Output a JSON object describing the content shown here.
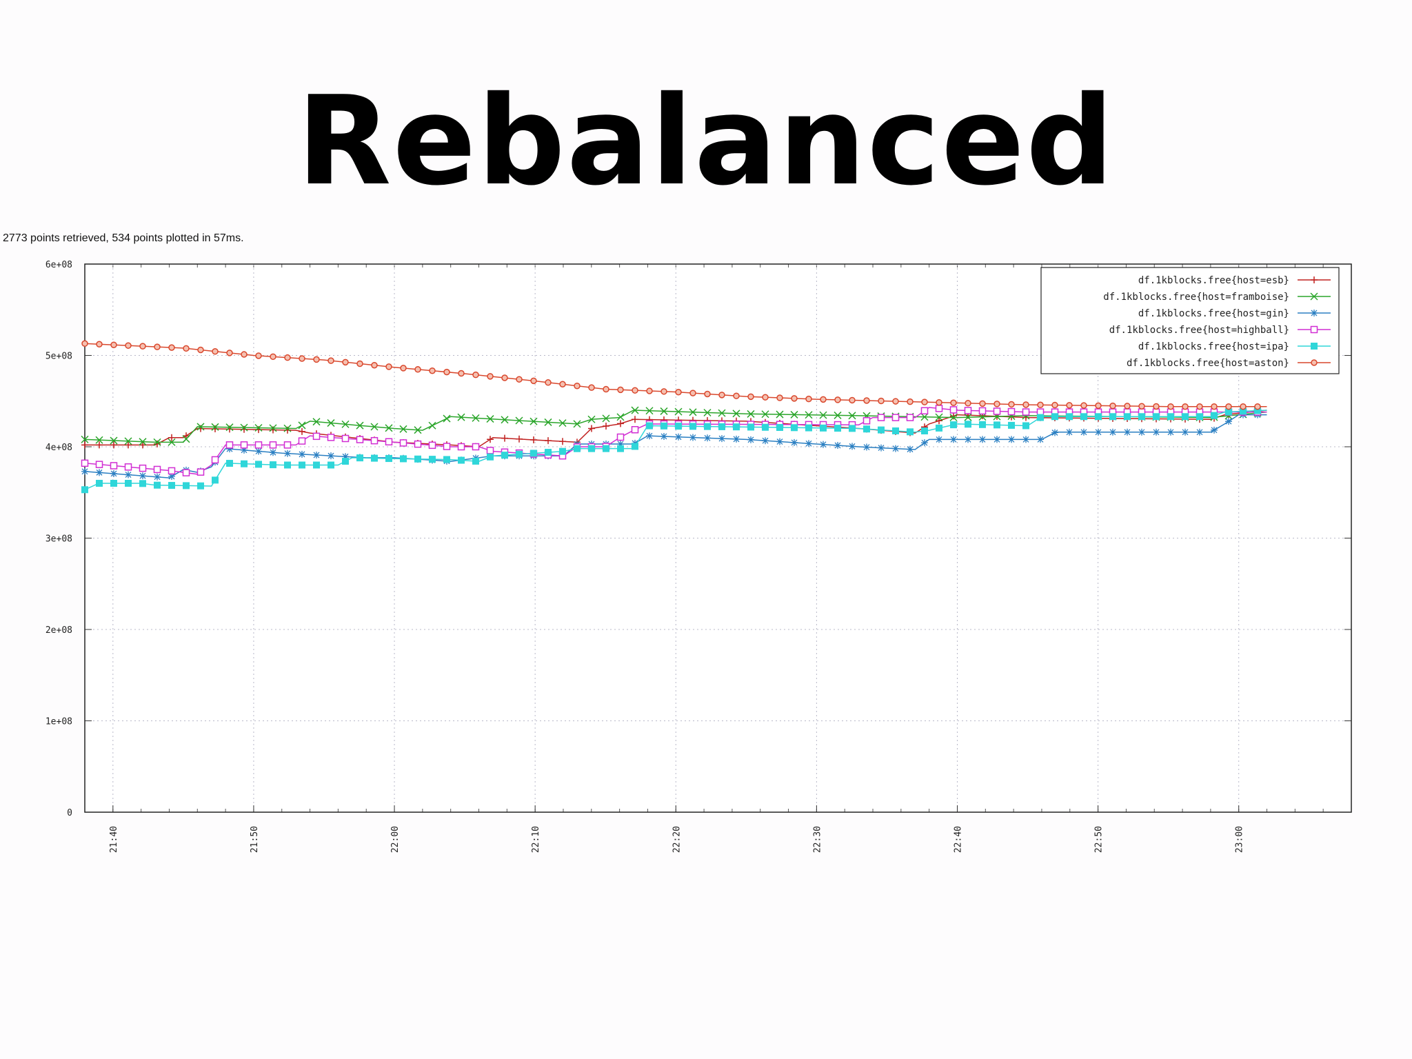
{
  "slide": {
    "title": "Rebalanced",
    "stats": "2773 points retrieved, 534 points plotted in 57ms."
  },
  "chart_data": {
    "type": "line",
    "x_unit": "time of day (HH:MM)",
    "x_ticks": [
      "21:40",
      "21:50",
      "22:00",
      "22:10",
      "22:20",
      "22:30",
      "22:40",
      "22:50",
      "23:00"
    ],
    "xlim": [
      "21:38",
      "23:08"
    ],
    "y_ticks": [
      "0",
      "1e+08",
      "2e+08",
      "3e+08",
      "4e+08",
      "5e+08",
      "6e+08"
    ],
    "ylim": [
      0,
      600000000
    ],
    "grid": true,
    "legend_position": "top-right",
    "series": [
      {
        "name": "df.1kblocks.free{host=esb}",
        "color": "#c0201f",
        "marker": "plus",
        "points": [
          [
            "21:38",
            402000000
          ],
          [
            "21:43",
            402000000
          ],
          [
            "21:44",
            410000000
          ],
          [
            "21:45",
            410000000
          ],
          [
            "21:46",
            420000000
          ],
          [
            "21:53",
            418000000
          ],
          [
            "21:54",
            415000000
          ],
          [
            "22:00",
            405000000
          ],
          [
            "22:04",
            402000000
          ],
          [
            "22:06",
            400000000
          ],
          [
            "22:07",
            410000000
          ],
          [
            "22:13",
            405000000
          ],
          [
            "22:14",
            420000000
          ],
          [
            "22:16",
            425000000
          ],
          [
            "22:17",
            430000000
          ],
          [
            "22:25",
            428000000
          ],
          [
            "22:33",
            420000000
          ],
          [
            "22:37",
            415000000
          ],
          [
            "22:38",
            425000000
          ],
          [
            "22:40",
            435000000
          ],
          [
            "22:45",
            432000000
          ],
          [
            "22:58",
            430000000
          ],
          [
            "22:59",
            435000000
          ],
          [
            "23:02",
            440000000
          ]
        ]
      },
      {
        "name": "df.1kblocks.free{host=framboise}",
        "color": "#2aa52a",
        "marker": "cross",
        "points": [
          [
            "21:38",
            408000000
          ],
          [
            "21:43",
            405000000
          ],
          [
            "21:45",
            405000000
          ],
          [
            "21:46",
            422000000
          ],
          [
            "21:53",
            420000000
          ],
          [
            "21:54",
            428000000
          ],
          [
            "22:00",
            420000000
          ],
          [
            "22:02",
            418000000
          ],
          [
            "22:04",
            433000000
          ],
          [
            "22:13",
            425000000
          ],
          [
            "22:14",
            430000000
          ],
          [
            "22:16",
            432000000
          ],
          [
            "22:17",
            440000000
          ],
          [
            "22:25",
            436000000
          ],
          [
            "22:33",
            434000000
          ],
          [
            "22:40",
            432000000
          ],
          [
            "22:45",
            434000000
          ],
          [
            "22:58",
            432000000
          ],
          [
            "23:02",
            438000000
          ]
        ]
      },
      {
        "name": "df.1kblocks.free{host=gin}",
        "color": "#2a7fc2",
        "marker": "star",
        "points": [
          [
            "21:38",
            373000000
          ],
          [
            "21:44",
            366000000
          ],
          [
            "21:45",
            375000000
          ],
          [
            "21:46",
            372000000
          ],
          [
            "21:47",
            378000000
          ],
          [
            "21:48",
            398000000
          ],
          [
            "21:52",
            393000000
          ],
          [
            "21:58",
            388000000
          ],
          [
            "22:00",
            388000000
          ],
          [
            "22:04",
            384000000
          ],
          [
            "22:07",
            390000000
          ],
          [
            "22:12",
            390000000
          ],
          [
            "22:13",
            403000000
          ],
          [
            "22:17",
            403000000
          ],
          [
            "22:18",
            412000000
          ],
          [
            "22:25",
            408000000
          ],
          [
            "22:33",
            400000000
          ],
          [
            "22:37",
            397000000
          ],
          [
            "22:38",
            408000000
          ],
          [
            "22:45",
            408000000
          ],
          [
            "22:46",
            408000000
          ],
          [
            "22:47",
            416000000
          ],
          [
            "22:58",
            416000000
          ],
          [
            "22:59",
            425000000
          ],
          [
            "23:00",
            435000000
          ],
          [
            "23:02",
            435000000
          ]
        ]
      },
      {
        "name": "df.1kblocks.free{host=highball}",
        "color": "#d12ed3",
        "marker": "open-square",
        "points": [
          [
            "21:38",
            382000000
          ],
          [
            "21:44",
            374000000
          ],
          [
            "21:46",
            370000000
          ],
          [
            "21:47",
            380000000
          ],
          [
            "21:48",
            402000000
          ],
          [
            "21:53",
            402000000
          ],
          [
            "21:54",
            412000000
          ],
          [
            "22:00",
            405000000
          ],
          [
            "22:04",
            400000000
          ],
          [
            "22:06",
            400000000
          ],
          [
            "22:07",
            395000000
          ],
          [
            "22:12",
            390000000
          ],
          [
            "22:13",
            400000000
          ],
          [
            "22:15",
            400000000
          ],
          [
            "22:16",
            410000000
          ],
          [
            "22:17",
            418000000
          ],
          [
            "22:18",
            425000000
          ],
          [
            "22:33",
            424000000
          ],
          [
            "22:34",
            432000000
          ],
          [
            "22:37",
            432000000
          ],
          [
            "22:38",
            443000000
          ],
          [
            "22:40",
            440000000
          ],
          [
            "22:45",
            438000000
          ],
          [
            "23:02",
            438000000
          ]
        ]
      },
      {
        "name": "df.1kblocks.free{host=ipa}",
        "color": "#2fd6d9",
        "marker": "filled-square",
        "points": [
          [
            "21:38",
            353000000
          ],
          [
            "21:39",
            360000000
          ],
          [
            "21:42",
            360000000
          ],
          [
            "21:43",
            358000000
          ],
          [
            "21:47",
            357000000
          ],
          [
            "21:48",
            382000000
          ],
          [
            "21:52",
            380000000
          ],
          [
            "21:56",
            380000000
          ],
          [
            "21:57",
            388000000
          ],
          [
            "22:00",
            387000000
          ],
          [
            "22:04",
            386000000
          ],
          [
            "22:06",
            384000000
          ],
          [
            "22:07",
            390000000
          ],
          [
            "22:12",
            395000000
          ],
          [
            "22:13",
            398000000
          ],
          [
            "22:17",
            398000000
          ],
          [
            "22:18",
            423000000
          ],
          [
            "22:33",
            420000000
          ],
          [
            "22:37",
            416000000
          ],
          [
            "22:38",
            418000000
          ],
          [
            "22:40",
            425000000
          ],
          [
            "22:45",
            423000000
          ],
          [
            "22:46",
            433000000
          ],
          [
            "22:58",
            433000000
          ],
          [
            "22:59",
            438000000
          ],
          [
            "23:02",
            440000000
          ]
        ]
      },
      {
        "name": "df.1kblocks.free{host=aston}",
        "color": "#d9472c",
        "marker": "open-circle",
        "points": [
          [
            "21:38",
            513000000
          ],
          [
            "21:45",
            508000000
          ],
          [
            "21:50",
            500000000
          ],
          [
            "21:55",
            495000000
          ],
          [
            "22:00",
            487000000
          ],
          [
            "22:05",
            480000000
          ],
          [
            "22:10",
            472000000
          ],
          [
            "22:15",
            463000000
          ],
          [
            "22:20",
            460000000
          ],
          [
            "22:25",
            455000000
          ],
          [
            "22:30",
            452000000
          ],
          [
            "22:35",
            450000000
          ],
          [
            "22:40",
            448000000
          ],
          [
            "22:45",
            446000000
          ],
          [
            "22:50",
            445000000
          ],
          [
            "22:55",
            444000000
          ],
          [
            "23:00",
            444000000
          ],
          [
            "23:02",
            444000000
          ]
        ]
      }
    ]
  }
}
